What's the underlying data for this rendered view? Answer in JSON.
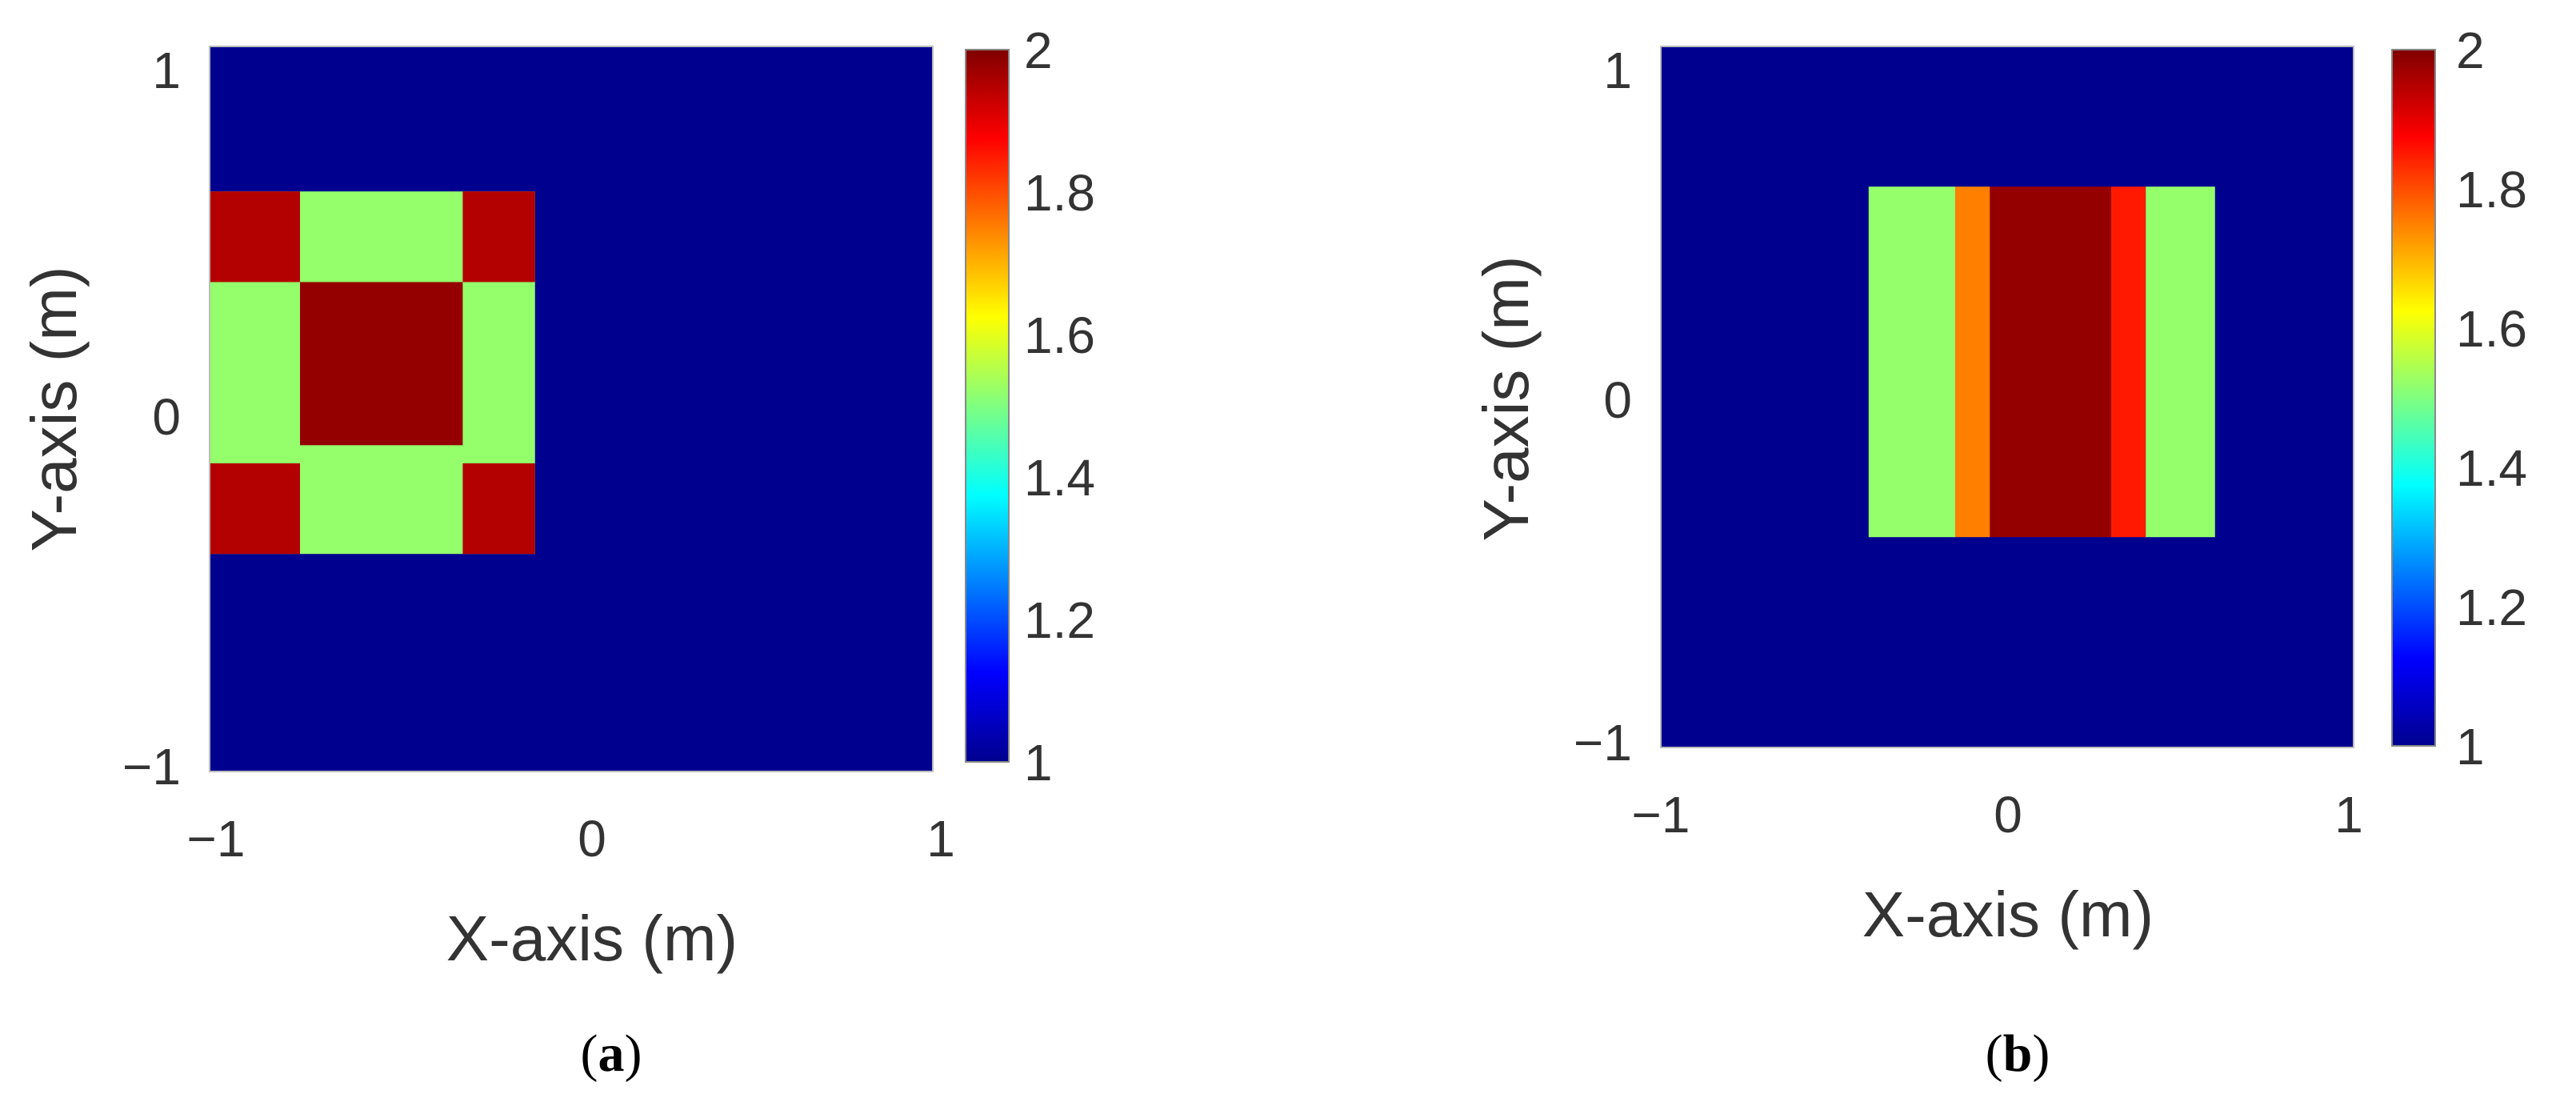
{
  "panels": [
    {
      "label_open": "(",
      "label_letter": "a",
      "label_close": ")"
    },
    {
      "label_open": "(",
      "label_letter": "b",
      "label_close": ")"
    }
  ],
  "chart_data": [
    {
      "type": "heatmap",
      "title": "",
      "xlabel": "X-axis (m)",
      "ylabel": "Y-axis (m)",
      "xlim": [
        -1,
        1
      ],
      "ylim": [
        -1,
        1
      ],
      "x_ticks": [
        -1,
        0,
        1
      ],
      "y_ticks": [
        -1,
        0,
        1
      ],
      "x_tick_labels": [
        "−1",
        "0",
        "1"
      ],
      "y_tick_labels": [
        "−1",
        "0",
        "1"
      ],
      "grid": false,
      "colormap": "jet",
      "colorbar": {
        "clim": [
          1,
          2
        ],
        "ticks": [
          1,
          1.2,
          1.4,
          1.6,
          1.8,
          2
        ],
        "tick_labels": [
          "1",
          "1.2",
          "1.4",
          "1.6",
          "1.8",
          "2"
        ],
        "placement": "right"
      },
      "background_value": 1.0,
      "regions": [
        {
          "name": "outer-square",
          "x": [
            -1.0,
            -0.1
          ],
          "y": [
            -0.4,
            0.6
          ],
          "value": 1.52
        },
        {
          "name": "center-block",
          "x": [
            -0.75,
            -0.3
          ],
          "y": [
            -0.1,
            0.35
          ],
          "value": 1.98
        },
        {
          "name": "corner-top-left",
          "x": [
            -1.0,
            -0.75
          ],
          "y": [
            0.35,
            0.6
          ],
          "value": 1.95
        },
        {
          "name": "corner-top-right",
          "x": [
            -0.3,
            -0.1
          ],
          "y": [
            0.35,
            0.6
          ],
          "value": 1.95
        },
        {
          "name": "corner-bottom-left",
          "x": [
            -1.0,
            -0.75
          ],
          "y": [
            -0.4,
            -0.15
          ],
          "value": 1.95
        },
        {
          "name": "corner-bottom-right",
          "x": [
            -0.3,
            -0.1
          ],
          "y": [
            -0.4,
            -0.15
          ],
          "value": 1.95
        }
      ]
    },
    {
      "type": "heatmap",
      "title": "",
      "xlabel": "X-axis (m)",
      "ylabel": "Y-axis (m)",
      "xlim": [
        -1,
        1
      ],
      "ylim": [
        -1,
        1
      ],
      "x_ticks": [
        -1,
        0,
        1
      ],
      "y_ticks": [
        -1,
        0,
        1
      ],
      "x_tick_labels": [
        "−1",
        "0",
        "1"
      ],
      "y_tick_labels": [
        "−1",
        "0",
        "1"
      ],
      "grid": false,
      "colormap": "jet",
      "colorbar": {
        "clim": [
          1,
          2
        ],
        "ticks": [
          1,
          1.2,
          1.4,
          1.6,
          1.8,
          2
        ],
        "tick_labels": [
          "1",
          "1.2",
          "1.4",
          "1.6",
          "1.8",
          "2"
        ],
        "placement": "right"
      },
      "background_value": 1.0,
      "regions": [
        {
          "name": "left-strip",
          "x": [
            -0.4,
            -0.15
          ],
          "y": [
            -0.4,
            0.6
          ],
          "value": 1.52
        },
        {
          "name": "left-edge",
          "x": [
            -0.15,
            -0.05
          ],
          "y": [
            -0.4,
            0.6
          ],
          "value": 1.75
        },
        {
          "name": "center-strip",
          "x": [
            -0.05,
            0.3
          ],
          "y": [
            -0.4,
            0.6
          ],
          "value": 1.98
        },
        {
          "name": "right-edge",
          "x": [
            0.3,
            0.4
          ],
          "y": [
            -0.4,
            0.6
          ],
          "value": 1.85
        },
        {
          "name": "right-strip",
          "x": [
            0.4,
            0.6
          ],
          "y": [
            -0.4,
            0.6
          ],
          "value": 1.52
        }
      ]
    }
  ]
}
